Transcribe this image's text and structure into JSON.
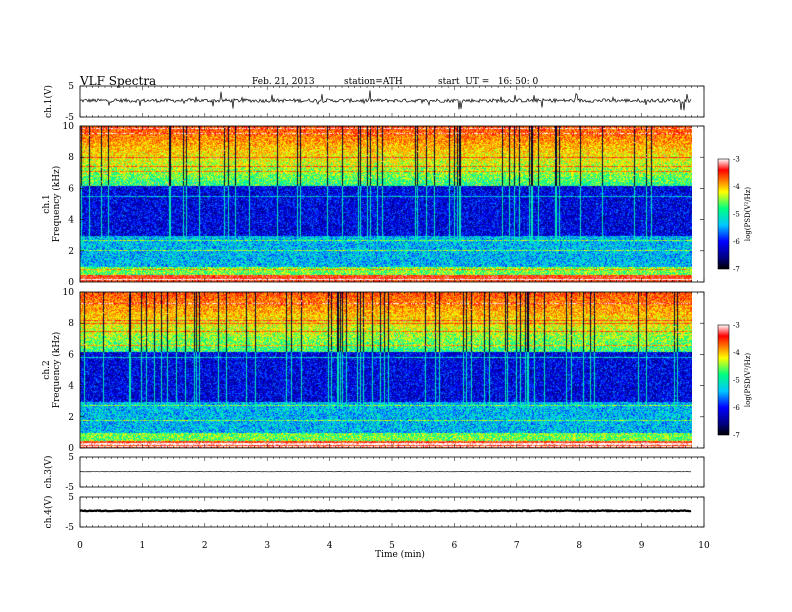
{
  "header": {
    "title": "VLF Spectra",
    "date": "Feb. 21, 2013",
    "station": "station=ATH",
    "start": "start  UT =   16: 50: 0"
  },
  "chart_data": {
    "type": "spectrogram",
    "x_axis": {
      "label": "Time (min)",
      "range": [
        0,
        10
      ],
      "ticks": [
        "0",
        "1",
        "2",
        "3",
        "4",
        "5",
        "6",
        "7",
        "8",
        "9",
        "10"
      ]
    },
    "panels": [
      {
        "id": "ch1-wave",
        "type": "line",
        "ylabel": "ch.1(V)",
        "yticks": [
          "5",
          "-5"
        ],
        "ylim": [
          -5,
          5
        ]
      },
      {
        "id": "ch1-spec",
        "type": "heatmap",
        "ylabel": "ch.1",
        "ylabel2": "Frequency (kHz)",
        "yticks": [
          "0",
          "2",
          "4",
          "6",
          "8",
          "10"
        ],
        "ylim": [
          0,
          10
        ],
        "colorbar": {
          "label": "log(PSD(V²/Hz)",
          "ticks": [
            "-3",
            "-4",
            "-5",
            "-6",
            "-7"
          ]
        }
      },
      {
        "id": "ch2-spec",
        "type": "heatmap",
        "ylabel": "ch.2",
        "ylabel2": "Frequency (kHz)",
        "yticks": [
          "0",
          "2",
          "4",
          "6",
          "8",
          "10"
        ],
        "ylim": [
          0,
          10
        ],
        "colorbar": {
          "label": "log(PSD(V²/Hz)",
          "ticks": [
            "-3",
            "-4",
            "-5",
            "-6",
            "-7"
          ]
        }
      },
      {
        "id": "ch3-wave",
        "type": "line",
        "ylabel": "ch.3(V)",
        "yticks": [
          "5",
          "-5"
        ],
        "ylim": [
          -5,
          5
        ]
      },
      {
        "id": "ch4-wave",
        "type": "line",
        "ylabel": "ch.4(V)",
        "yticks": [
          "5",
          "-5"
        ],
        "ylim": [
          -5,
          5
        ]
      }
    ],
    "data_end_min": 9.8,
    "colors": {
      "min": "#000080",
      "mid": "#00ff80",
      "max": "#ffffff"
    }
  }
}
